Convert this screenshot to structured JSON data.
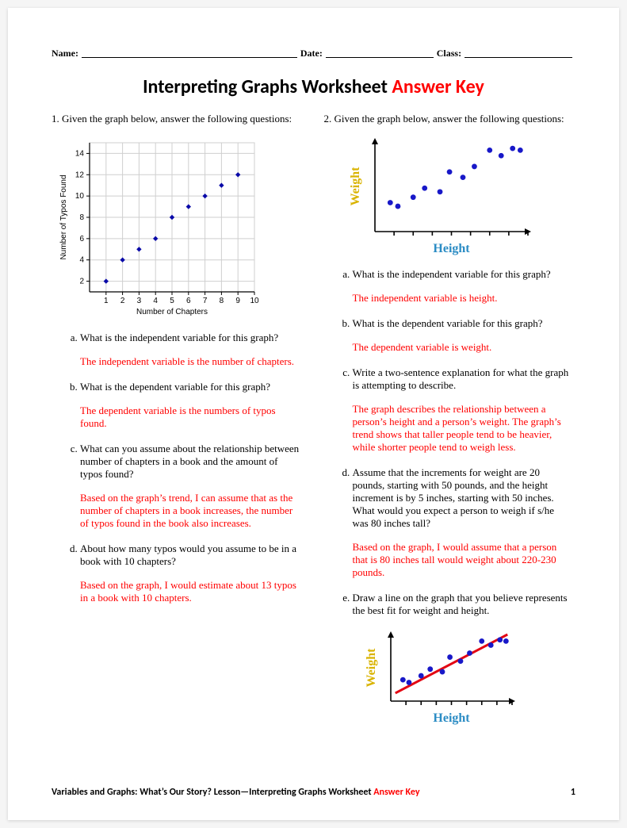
{
  "header": {
    "name_label": "Name:",
    "date_label": "Date:",
    "class_label": "Class:"
  },
  "title": {
    "main": "Interpreting Graphs Worksheet ",
    "suffix": "Answer Key"
  },
  "q1": {
    "prompt": "1. Given the graph below, answer the following questions:",
    "chart": {
      "type": "scatter",
      "xlabel": "Number of Chapters",
      "ylabel": "Number of Typos Found",
      "xlim": [
        0,
        10
      ],
      "ylim": [
        1,
        15
      ],
      "xticks": [
        1,
        2,
        3,
        4,
        5,
        6,
        7,
        8,
        9,
        10
      ],
      "yticks": [
        2,
        4,
        6,
        8,
        10,
        12,
        14
      ],
      "points_x": [
        1,
        2,
        3,
        4,
        5,
        6,
        7,
        8,
        9
      ],
      "points_y": [
        2,
        4,
        5,
        6,
        8,
        9,
        10,
        11,
        12
      ],
      "grid_color": "#cfcfcf",
      "axis_color": "#000000",
      "point_color": "#0a0aa8",
      "point_radius": 3.2,
      "background": "#ffffff",
      "tick_fontsize": 10,
      "label_fontsize": 10
    },
    "a_q": "What is the independent variable for this graph?",
    "a_a": "The independent variable is the number of chapters.",
    "b_q": "What is the dependent variable for this graph?",
    "b_a": "The dependent variable is the numbers of typos found.",
    "c_q": "What can you assume about the relationship between number of chapters in a book and the amount of typos found?",
    "c_a": "Based on the graph’s trend, I can assume that as the number of chapters in a book increases, the number of typos found in the book also increases.",
    "d_q": "About how many typos would you assume to be in a book with 10 chapters?",
    "d_a": "Based on the graph, I would estimate about 13 typos in a book with 10 chapters."
  },
  "q2": {
    "prompt": "2. Given the graph below, answer the following questions:",
    "chart": {
      "type": "scatter",
      "xlabel": "Height",
      "ylabel": "Weight",
      "xlabel_color": "#2b8cc4",
      "ylabel_color": "#d9b300",
      "axis_color": "#000000",
      "point_color": "#1818c8",
      "point_radius": 3.4,
      "points_x": [
        0.8,
        1.2,
        2.0,
        2.6,
        3.4,
        3.9,
        4.6,
        5.2,
        6.0,
        6.6,
        7.2,
        7.6
      ],
      "points_y": [
        1.6,
        1.4,
        1.9,
        2.4,
        2.2,
        3.3,
        3.0,
        3.6,
        4.5,
        4.2,
        4.6,
        4.5
      ],
      "xticks_count": 8,
      "fit_line_color": "#e30613",
      "fit_line_width": 3
    },
    "a_q": "What is the independent variable for this graph?",
    "a_a": "The independent variable is height.",
    "b_q": "What is the dependent variable for this graph?",
    "b_a": "The dependent variable is weight.",
    "c_q": "Write a two-sentence explanation for what the graph is attempting to describe.",
    "c_a": "The graph describes the relationship between a person’s height and a person’s weight. The graph’s trend shows that taller people tend to be heavier, while shorter people tend to weigh less.",
    "d_q": "Assume that the increments for weight are 20 pounds, starting with 50 pounds, and the height increment is by 5 inches, starting with 50 inches. What would you expect a person to weigh if s/he was 80 inches tall?",
    "d_a": "Based on the graph, I would assume that a person that is 80 inches tall would weight about 220-230 pounds.",
    "e_q": "Draw a line on the graph that you believe represents the best fit for weight and height."
  },
  "footer": {
    "text": "Variables and Graphs: What’s Our Story? Lesson—Interpreting Graphs Worksheet ",
    "suffix": "Answer Key",
    "page": "1"
  }
}
